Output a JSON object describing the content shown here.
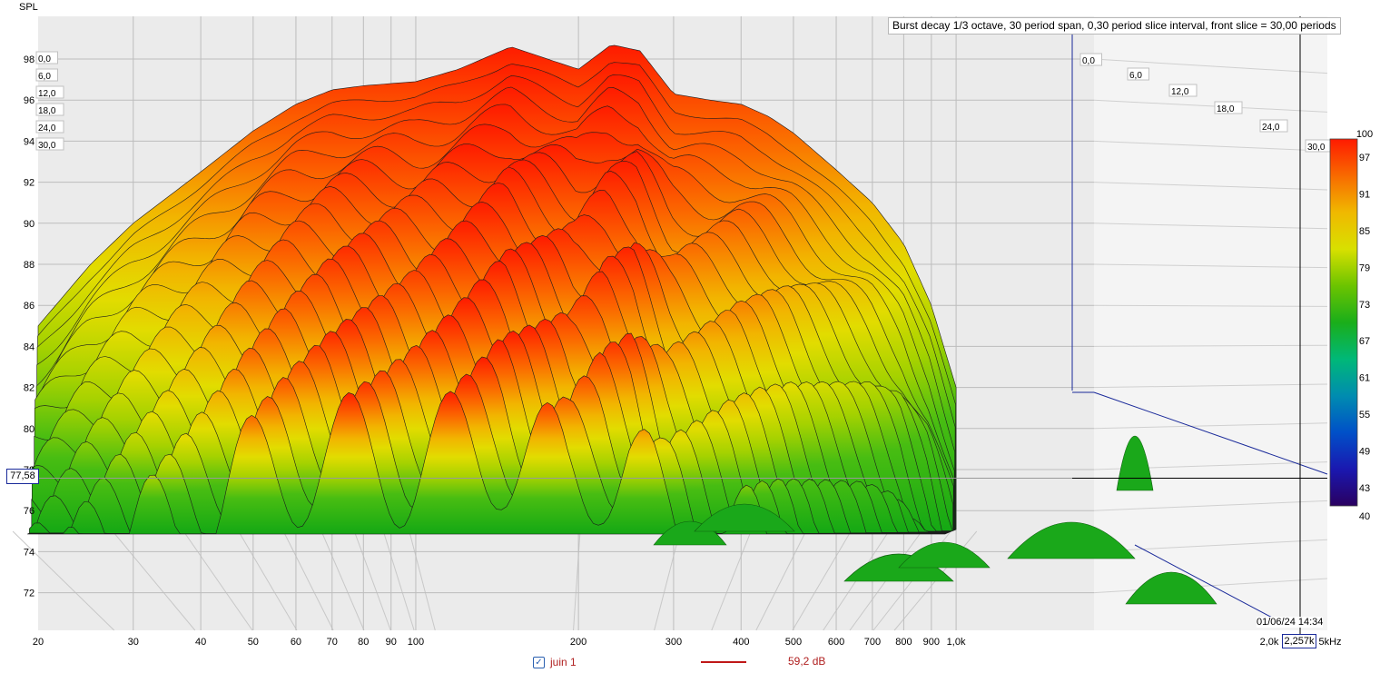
{
  "title": "Burst decay 1/3 octave, 30 period span, 0,30 period slice interval,  front slice = 30,00 periods",
  "y_axis_label": "SPL",
  "cursor": {
    "spl": "77,58",
    "freq": "2,257k"
  },
  "date": "01/06/24 14:34",
  "legend": {
    "checkbox": "✓",
    "name": "juin 1",
    "value": "59,2 dB",
    "color": "#c01818"
  },
  "colors": {
    "background": "#ffffff",
    "grid": "#bdbdbd",
    "axis_lines": "#1a2a9a",
    "cursor": "#000000"
  },
  "chart_data": {
    "type": "area",
    "subtype": "waterfall / burst decay 3D",
    "x": {
      "label": "",
      "scale": "log",
      "range": [
        20,
        5000
      ],
      "ticks": [
        "20",
        "30",
        "40",
        "50",
        "60",
        "70",
        "80",
        "90",
        "100",
        "200",
        "300",
        "400",
        "500",
        "600",
        "700",
        "800",
        "900",
        "1,0k",
        "2,0k",
        "5kHz"
      ]
    },
    "y": {
      "label": "SPL",
      "range": [
        70,
        100
      ],
      "ticks": [
        "98",
        "96",
        "94",
        "92",
        "90",
        "88",
        "86",
        "84",
        "82",
        "80",
        "78",
        "76",
        "74",
        "72"
      ]
    },
    "z": {
      "label": "periods",
      "ticks_left": [
        "0,0",
        "6,0",
        "12,0",
        "18,0",
        "24,0",
        "30,0"
      ],
      "ticks_right": [
        "0,0",
        "6,0",
        "12,0",
        "18,0",
        "24,0",
        "30,0"
      ]
    },
    "colorbar": {
      "range": [
        40,
        100
      ],
      "ticks": [
        "100",
        "97",
        "91",
        "85",
        "79",
        "73",
        "67",
        "61",
        "55",
        "49",
        "43",
        "40"
      ]
    },
    "front_slice": {
      "x": [
        20,
        25,
        30,
        40,
        50,
        60,
        70,
        80,
        100,
        120,
        150,
        180,
        200,
        230,
        260,
        300,
        350,
        400,
        450,
        500,
        600,
        700,
        800,
        900,
        1000
      ],
      "y": [
        85,
        88,
        90,
        92.5,
        94.5,
        95.8,
        96.5,
        96.7,
        96.9,
        97.5,
        98.6,
        97.9,
        97.5,
        98.7,
        98.4,
        96.3,
        96,
        95.8,
        95.2,
        94.4,
        92.6,
        91,
        89,
        86,
        82
      ]
    },
    "slice_period_step": 0.3
  }
}
